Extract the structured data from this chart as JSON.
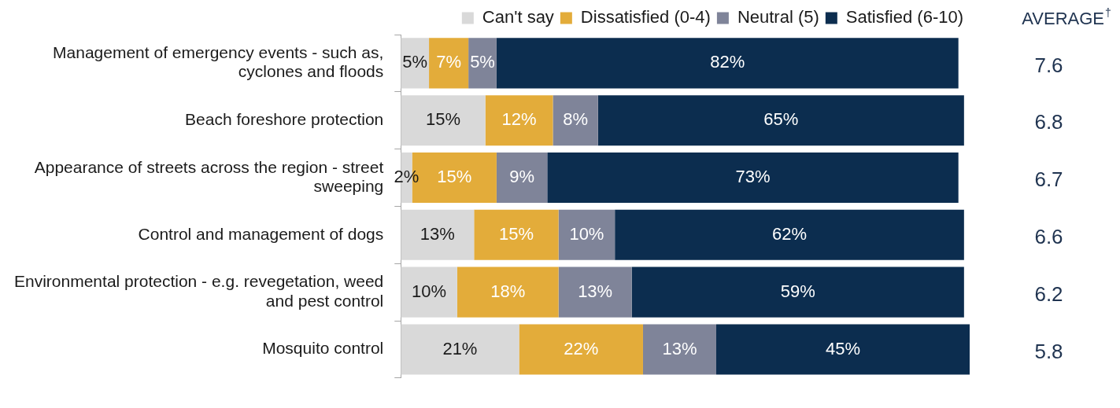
{
  "chart_data": {
    "type": "bar",
    "orientation": "horizontal",
    "stacked": true,
    "categories": [
      "Management of emergency events - such as, cyclones and floods",
      "Beach foreshore protection",
      "Appearance of streets across the region - street sweeping",
      "Control and management of dogs",
      "Environmental protection - e.g. revegetation, weed and pest control",
      "Mosquito control"
    ],
    "series": [
      {
        "name": "Can't say",
        "color": "#d9d9d9",
        "values": [
          5,
          15,
          2,
          13,
          10,
          21
        ],
        "value_labels": [
          "5%",
          "15%",
          "2%",
          "13%",
          "10%",
          "21%"
        ]
      },
      {
        "name": "Dissatisfied (0-4)",
        "color": "#e3ac3a",
        "values": [
          7,
          12,
          15,
          15,
          18,
          22
        ],
        "value_labels": [
          "7%",
          "12%",
          "15%",
          "15%",
          "18%",
          "22%"
        ]
      },
      {
        "name": "Neutral (5)",
        "color": "#7f8499",
        "values": [
          5,
          8,
          9,
          10,
          13,
          13
        ],
        "value_labels": [
          "5%",
          "8%",
          "9%",
          "10%",
          "13%",
          "13%"
        ]
      },
      {
        "name": "Satisfied (6-10)",
        "color": "#0c2d4f",
        "values": [
          82,
          65,
          73,
          62,
          59,
          45
        ],
        "value_labels": [
          "82%",
          "65%",
          "73%",
          "62%",
          "59%",
          "45%"
        ]
      }
    ],
    "xlim": [
      0,
      101
    ],
    "tick_labels": "y",
    "legend": "top right",
    "grid": false,
    "annotations": [
      "AVERAGE$^{†}$",
      "7.6",
      "6.8",
      "6.7",
      "6.6",
      "6.2",
      "5.8"
    ]
  }
}
